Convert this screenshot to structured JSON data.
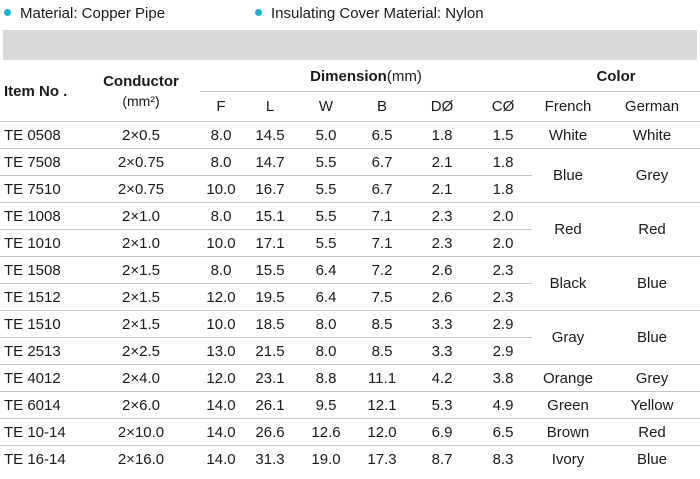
{
  "bullets": [
    {
      "text": "Material: Copper Pipe"
    },
    {
      "text": "Insulating Cover Material: Nylon"
    }
  ],
  "accent_color": "#19b3d1",
  "table": {
    "headers": {
      "item_no": "Item No .",
      "conductor": "Conductor",
      "conductor_unit": "(mm²)",
      "dimension": "Dimension",
      "dimension_unit": "(mm)",
      "color": "Color",
      "dims": [
        "F",
        "L",
        "W",
        "B",
        "DØ",
        "CØ"
      ],
      "french": "French",
      "german": "German"
    },
    "rows": [
      {
        "item": "TE 0508",
        "conductor": "2×0.5",
        "F": "8.0",
        "L": "14.5",
        "W": "5.0",
        "B": "6.5",
        "D": "1.8",
        "C": "1.5"
      },
      {
        "item": "TE 7508",
        "conductor": "2×0.75",
        "F": "8.0",
        "L": "14.7",
        "W": "5.5",
        "B": "6.7",
        "D": "2.1",
        "C": "1.8"
      },
      {
        "item": "TE 7510",
        "conductor": "2×0.75",
        "F": "10.0",
        "L": "16.7",
        "W": "5.5",
        "B": "6.7",
        "D": "2.1",
        "C": "1.8"
      },
      {
        "item": "TE 1008",
        "conductor": "2×1.0",
        "F": "8.0",
        "L": "15.1",
        "W": "5.5",
        "B": "7.1",
        "D": "2.3",
        "C": "2.0"
      },
      {
        "item": "TE 1010",
        "conductor": "2×1.0",
        "F": "10.0",
        "L": "17.1",
        "W": "5.5",
        "B": "7.1",
        "D": "2.3",
        "C": "2.0"
      },
      {
        "item": "TE 1508",
        "conductor": "2×1.5",
        "F": "8.0",
        "L": "15.5",
        "W": "6.4",
        "B": "7.2",
        "D": "2.6",
        "C": "2.3"
      },
      {
        "item": "TE 1512",
        "conductor": "2×1.5",
        "F": "12.0",
        "L": "19.5",
        "W": "6.4",
        "B": "7.5",
        "D": "2.6",
        "C": "2.3"
      },
      {
        "item": "TE 1510",
        "conductor": "2×1.5",
        "F": "10.0",
        "L": "18.5",
        "W": "8.0",
        "B": "8.5",
        "D": "3.3",
        "C": "2.9"
      },
      {
        "item": "TE 2513",
        "conductor": "2×2.5",
        "F": "13.0",
        "L": "21.5",
        "W": "8.0",
        "B": "8.5",
        "D": "3.3",
        "C": "2.9"
      },
      {
        "item": "TE 4012",
        "conductor": "2×4.0",
        "F": "12.0",
        "L": "23.1",
        "W": "8.8",
        "B": "11.1",
        "D": "4.2",
        "C": "3.8"
      },
      {
        "item": "TE 6014",
        "conductor": "2×6.0",
        "F": "14.0",
        "L": "26.1",
        "W": "9.5",
        "B": "12.1",
        "D": "5.3",
        "C": "4.9"
      },
      {
        "item": "TE 10-14",
        "conductor": "2×10.0",
        "F": "14.0",
        "L": "26.6",
        "W": "12.6",
        "B": "12.0",
        "D": "6.9",
        "C": "6.5"
      },
      {
        "item": "TE 16-14",
        "conductor": "2×16.0",
        "F": "14.0",
        "L": "31.3",
        "W": "19.0",
        "B": "17.3",
        "D": "8.7",
        "C": "8.3"
      }
    ],
    "colors": [
      {
        "french": "White",
        "german": "White"
      },
      {
        "french": "Blue",
        "german": "Grey"
      },
      {
        "french": "Red",
        "german": "Red"
      },
      {
        "french": "Black",
        "german": "Blue"
      },
      {
        "french": "Gray",
        "german": "Blue"
      },
      {
        "french": "Orange",
        "german": "Grey"
      },
      {
        "french": "Green",
        "german": "Yellow"
      },
      {
        "french": "Brown",
        "german": "Red"
      },
      {
        "french": "Ivory",
        "german": "Blue"
      }
    ]
  }
}
